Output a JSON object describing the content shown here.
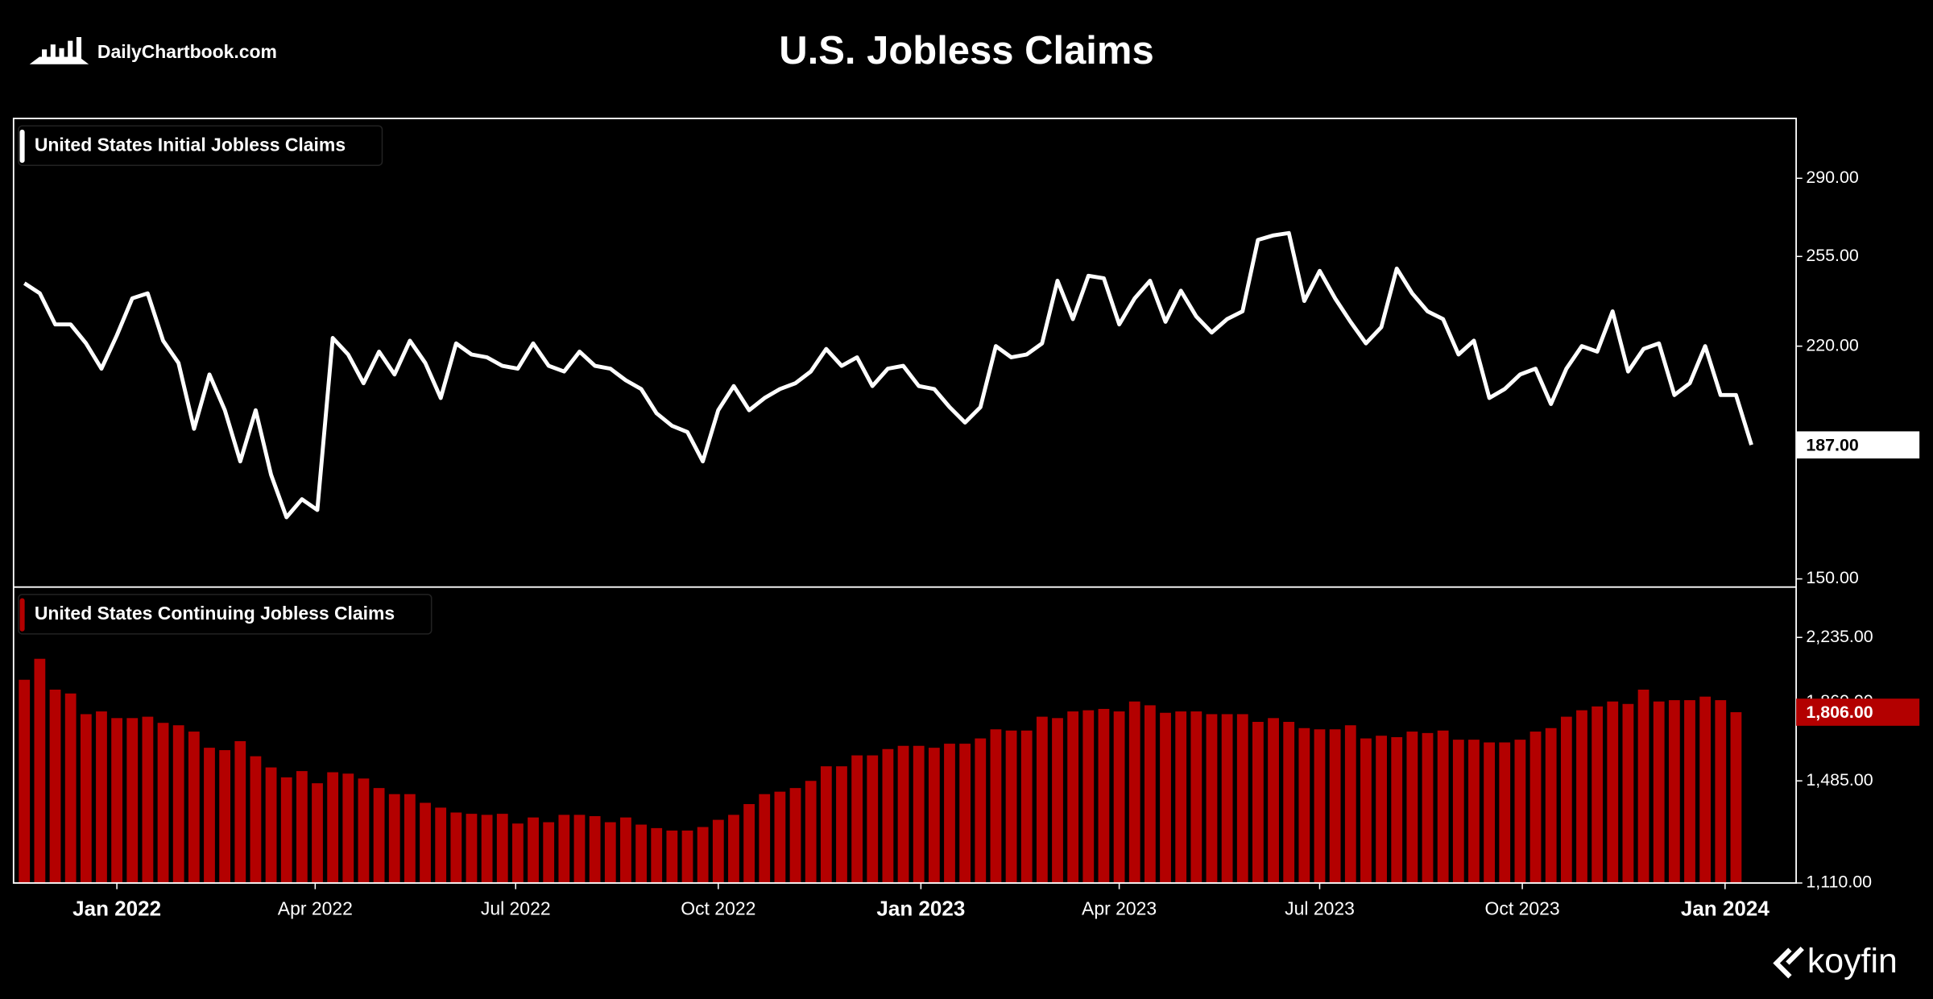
{
  "header": {
    "title": "U.S. Jobless Claims",
    "source": "DailyChartbook.com",
    "brand": "koyfin"
  },
  "chart_data": [
    {
      "type": "line",
      "log_scale": true,
      "color": "#ffffff",
      "series": [
        {
          "name": "United States Initial Jobless Claims",
          "color": "#ffffff",
          "values": [
            244,
            240,
            228,
            228,
            221,
            212,
            224,
            238,
            240,
            222,
            214,
            192,
            210,
            198,
            182,
            198,
            178,
            166,
            171,
            168,
            223,
            217,
            207,
            218,
            210,
            222,
            214,
            202,
            221,
            217,
            216,
            213,
            212,
            221,
            213,
            211,
            218,
            213,
            212,
            208,
            205,
            197,
            193,
            191,
            182,
            198,
            206,
            198,
            202,
            205,
            207,
            211,
            219,
            213,
            216,
            206,
            212,
            213,
            206,
            205,
            199,
            194,
            199,
            220,
            216,
            217,
            221,
            245,
            230,
            247,
            246,
            228,
            238,
            245,
            229,
            241,
            231,
            225,
            230,
            233,
            262,
            264,
            265,
            237,
            249,
            238,
            229,
            221,
            227,
            250,
            240,
            233,
            230,
            217,
            222,
            202,
            205,
            210,
            212,
            200,
            212,
            220,
            218,
            233,
            211,
            219,
            221,
            203,
            207,
            220,
            203,
            203,
            187
          ]
        }
      ],
      "current_value": {
        "value": 187,
        "label": "187.00"
      },
      "xlim": [
        -0.7,
        114.9
      ],
      "ylim": [
        148,
        320
      ],
      "yticks": [
        {
          "value": 150,
          "label": "150.00"
        },
        {
          "value": 220,
          "label": "220.00"
        },
        {
          "value": 255,
          "label": "255.00"
        },
        {
          "value": 290,
          "label": "290.00"
        }
      ]
    },
    {
      "type": "bar",
      "log_scale": true,
      "color": "#b30000",
      "series": [
        {
          "name": "United States Continuing Jobless Claims",
          "color": "#b30000",
          "values": [
            1981,
            2103,
            1926,
            1905,
            1796,
            1810,
            1776,
            1776,
            1783,
            1752,
            1740,
            1709,
            1632,
            1621,
            1663,
            1593,
            1543,
            1500,
            1527,
            1475,
            1522,
            1516,
            1495,
            1455,
            1430,
            1430,
            1395,
            1376,
            1357,
            1352,
            1348,
            1352,
            1315,
            1338,
            1320,
            1348,
            1348,
            1343,
            1320,
            1338,
            1311,
            1298,
            1289,
            1289,
            1302,
            1329,
            1348,
            1390,
            1430,
            1440,
            1455,
            1485,
            1548,
            1548,
            1597,
            1597,
            1626,
            1641,
            1641,
            1632,
            1651,
            1651,
            1676,
            1720,
            1714,
            1714,
            1783,
            1776,
            1810,
            1816,
            1823,
            1810,
            1862,
            1842,
            1803,
            1810,
            1810,
            1796,
            1796,
            1796,
            1757,
            1776,
            1757,
            1726,
            1720,
            1720,
            1740,
            1676,
            1689,
            1682,
            1709,
            1702,
            1714,
            1670,
            1670,
            1657,
            1657,
            1670,
            1709,
            1726,
            1783,
            1816,
            1836,
            1862,
            1849,
            1926,
            1862,
            1869,
            1869,
            1888,
            1869,
            1806
          ]
        }
      ],
      "current_value": {
        "value": 1806,
        "label": "1,806.00"
      },
      "xlim": [
        -0.7,
        114.9
      ],
      "xticks": [
        {
          "value": 6.0,
          "label": "Jan 2022"
        },
        {
          "value": 18.86,
          "label": "Apr 2022"
        },
        {
          "value": 31.86,
          "label": "Jul 2022"
        },
        {
          "value": 45.0,
          "label": "Oct 2022"
        },
        {
          "value": 58.14,
          "label": "Jan 2023"
        },
        {
          "value": 71.0,
          "label": "Apr 2023"
        },
        {
          "value": 84.0,
          "label": "Jul 2023"
        },
        {
          "value": 97.14,
          "label": "Oct 2023"
        },
        {
          "value": 110.29,
          "label": "Jan 2024"
        }
      ],
      "ylim": [
        1110,
        2580
      ],
      "yticks": [
        {
          "value": 1110,
          "label": "1,110.00"
        },
        {
          "value": 1485,
          "label": "1,485.00"
        },
        {
          "value": 1860,
          "label": "1,860.00"
        },
        {
          "value": 2235,
          "label": "2,235.00"
        }
      ]
    }
  ]
}
